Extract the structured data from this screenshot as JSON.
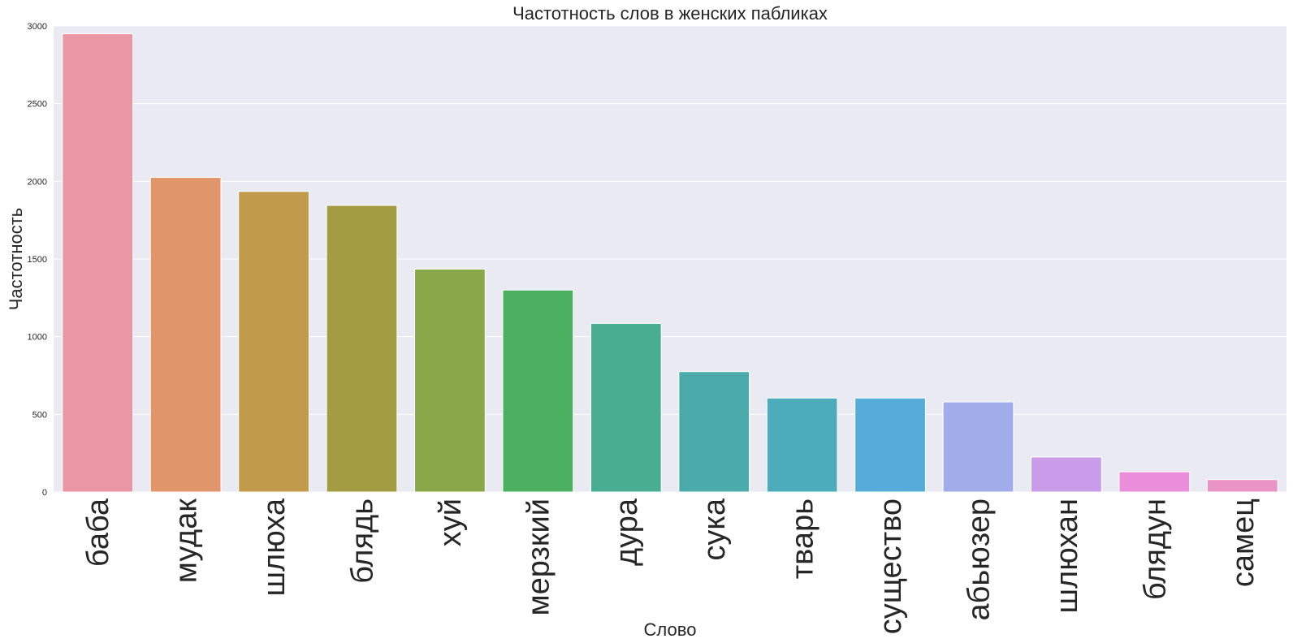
{
  "chart_data": {
    "type": "bar",
    "title": "Частотность слов в женских пабликах",
    "xlabel": "Слово",
    "ylabel": "Частотность",
    "ylim": [
      0,
      3000
    ],
    "yticks": [
      "0",
      "500",
      "1000",
      "1500",
      "2000",
      "2500",
      "3000"
    ],
    "grid": true,
    "categories": [
      "баба",
      "мудак",
      "шлюха",
      "блядь",
      "хуй",
      "мерзкий",
      "дура",
      "сука",
      "тварь",
      "существо",
      "абьюзер",
      "шлюхан",
      "блядун",
      "самец"
    ],
    "values": [
      2950,
      2025,
      1935,
      1845,
      1435,
      1300,
      1085,
      775,
      605,
      605,
      580,
      225,
      130,
      80
    ],
    "colors": [
      "#ea96a3",
      "#e1956a",
      "#c19a4b",
      "#a39c43",
      "#89a84a",
      "#4cb061",
      "#49ae91",
      "#4aabaa",
      "#4cacbc",
      "#56acd8",
      "#a2acea",
      "#c89ce8",
      "#ea8edc",
      "#ea94c6"
    ]
  }
}
